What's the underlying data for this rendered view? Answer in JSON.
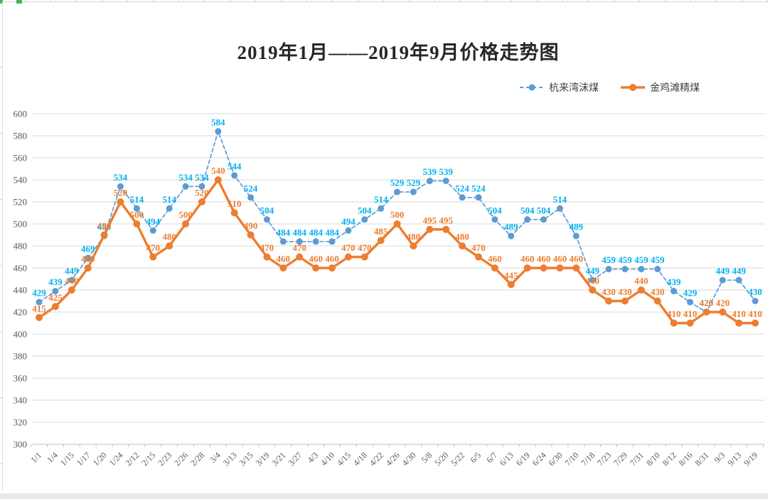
{
  "title": "2019年1月——2019年9月价格走势图",
  "chart_data": {
    "type": "line",
    "title": "2019年1月——2019年9月价格走势图",
    "xlabel": "",
    "ylabel": "",
    "ylim": [
      300,
      600
    ],
    "ytick_step": 20,
    "grid": true,
    "data_labels": true,
    "legend_position": "top-right",
    "categories": [
      "1/1",
      "1/4",
      "1/15",
      "1/17",
      "1/20",
      "1/24",
      "2/12",
      "2/15",
      "2/23",
      "2/26",
      "2/28",
      "3/4",
      "3/13",
      "3/15",
      "3/19",
      "3/21",
      "3/27",
      "4/3",
      "4/10",
      "4/15",
      "4/18",
      "4/22",
      "4/26",
      "4/30",
      "5/8",
      "5/20",
      "5/22",
      "6/5",
      "6/7",
      "6/13",
      "6/19",
      "6/24",
      "6/30",
      "7/10",
      "7/18",
      "7/23",
      "7/29",
      "7/31",
      "8/10",
      "8/12",
      "8/16",
      "8/31",
      "9/3",
      "9/13",
      "9/19"
    ],
    "series": [
      {
        "name": "杭来湾沫煤",
        "line_style": "dashed",
        "color": "#5B9BD5",
        "label_color": "#00B0F0",
        "values": [
          429,
          439,
          449,
          469,
          489,
          534,
          514,
          494,
          514,
          534,
          534,
          584,
          544,
          524,
          504,
          484,
          484,
          484,
          484,
          494,
          504,
          514,
          529,
          529,
          539,
          539,
          524,
          524,
          504,
          489,
          504,
          504,
          514,
          489,
          449,
          459,
          459,
          459,
          459,
          439,
          429,
          420,
          449,
          449,
          430
        ]
      },
      {
        "name": "金鸡滩精煤",
        "line_style": "solid",
        "color": "#ED7D31",
        "label_color": "#ED7D31",
        "values": [
          415,
          425,
          440,
          460,
          490,
          520,
          500,
          470,
          480,
          500,
          520,
          540,
          510,
          490,
          470,
          460,
          470,
          460,
          460,
          470,
          470,
          485,
          500,
          480,
          495,
          495,
          480,
          470,
          460,
          445,
          460,
          460,
          460,
          460,
          440,
          430,
          430,
          440,
          430,
          410,
          410,
          420,
          420,
          410,
          410
        ]
      }
    ]
  }
}
